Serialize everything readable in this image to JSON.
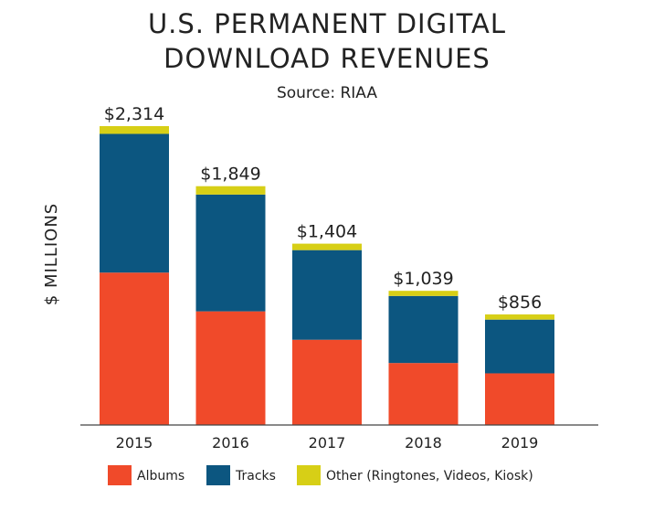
{
  "chart_data": {
    "type": "bar",
    "stacked": true,
    "title_lines": [
      "U.S. PERMANENT DIGITAL",
      "DOWNLOAD REVENUES"
    ],
    "subtitle": "Source: RIAA",
    "xlabel": "",
    "ylabel": "$ MILLIONS",
    "categories": [
      "2015",
      "2016",
      "2017",
      "2018",
      "2019"
    ],
    "ylim": [
      0,
      2314
    ],
    "series": [
      {
        "name": "Albums",
        "color": "#f04a2a",
        "values": [
          1180,
          880,
          660,
          480,
          400
        ]
      },
      {
        "name": "Tracks",
        "color": "#0c5680",
        "values": [
          1074,
          904,
          694,
          519,
          416
        ]
      },
      {
        "name": "Other (Ringtones, Videos, Kiosk)",
        "color": "#d7cf16",
        "values": [
          60,
          65,
          50,
          40,
          40
        ]
      }
    ],
    "totals": [
      "$2,314",
      "$1,849",
      "$1,404",
      "$1,039",
      "$856"
    ],
    "total_values": [
      2314,
      1849,
      1404,
      1039,
      856
    ],
    "grid": false,
    "legend_position": "bottom"
  }
}
